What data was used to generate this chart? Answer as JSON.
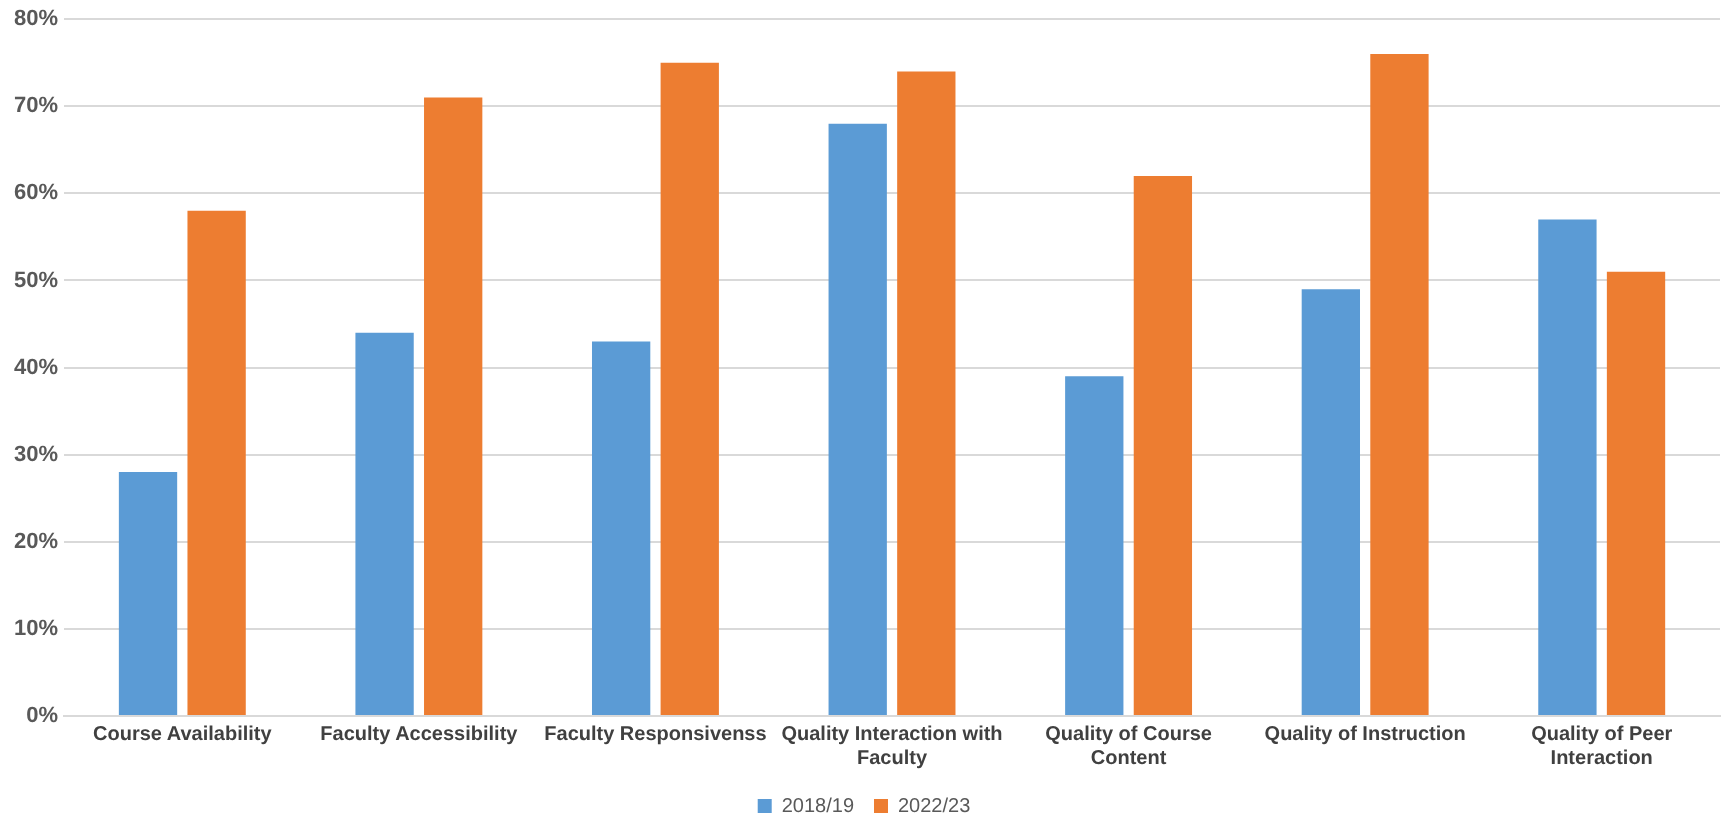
{
  "chart_data": {
    "type": "bar",
    "categories": [
      "Course Availability",
      "Faculty Accessibility",
      "Faculty Responsivenss",
      "Quality Interaction with Faculty",
      "Quality of Course Content",
      "Quality of Instruction",
      "Quality of Peer Interaction"
    ],
    "series": [
      {
        "name": "2018/19",
        "color": "#5b9bd5",
        "values": [
          28,
          44,
          43,
          68,
          39,
          49,
          57
        ]
      },
      {
        "name": "2022/23",
        "color": "#ed7d31",
        "values": [
          58,
          71,
          75,
          74,
          62,
          76,
          51
        ]
      }
    ],
    "ylim": [
      0,
      80
    ],
    "yticks": [
      {
        "value": 0,
        "label": "0%"
      },
      {
        "value": 10,
        "label": "10%"
      },
      {
        "value": 20,
        "label": "20%"
      },
      {
        "value": 30,
        "label": "30%"
      },
      {
        "value": 40,
        "label": "40%"
      },
      {
        "value": 50,
        "label": "50%"
      },
      {
        "value": 60,
        "label": "60%"
      },
      {
        "value": 70,
        "label": "70%"
      },
      {
        "value": 80,
        "label": "80%"
      }
    ],
    "grid": "y",
    "legend": "bottom"
  }
}
